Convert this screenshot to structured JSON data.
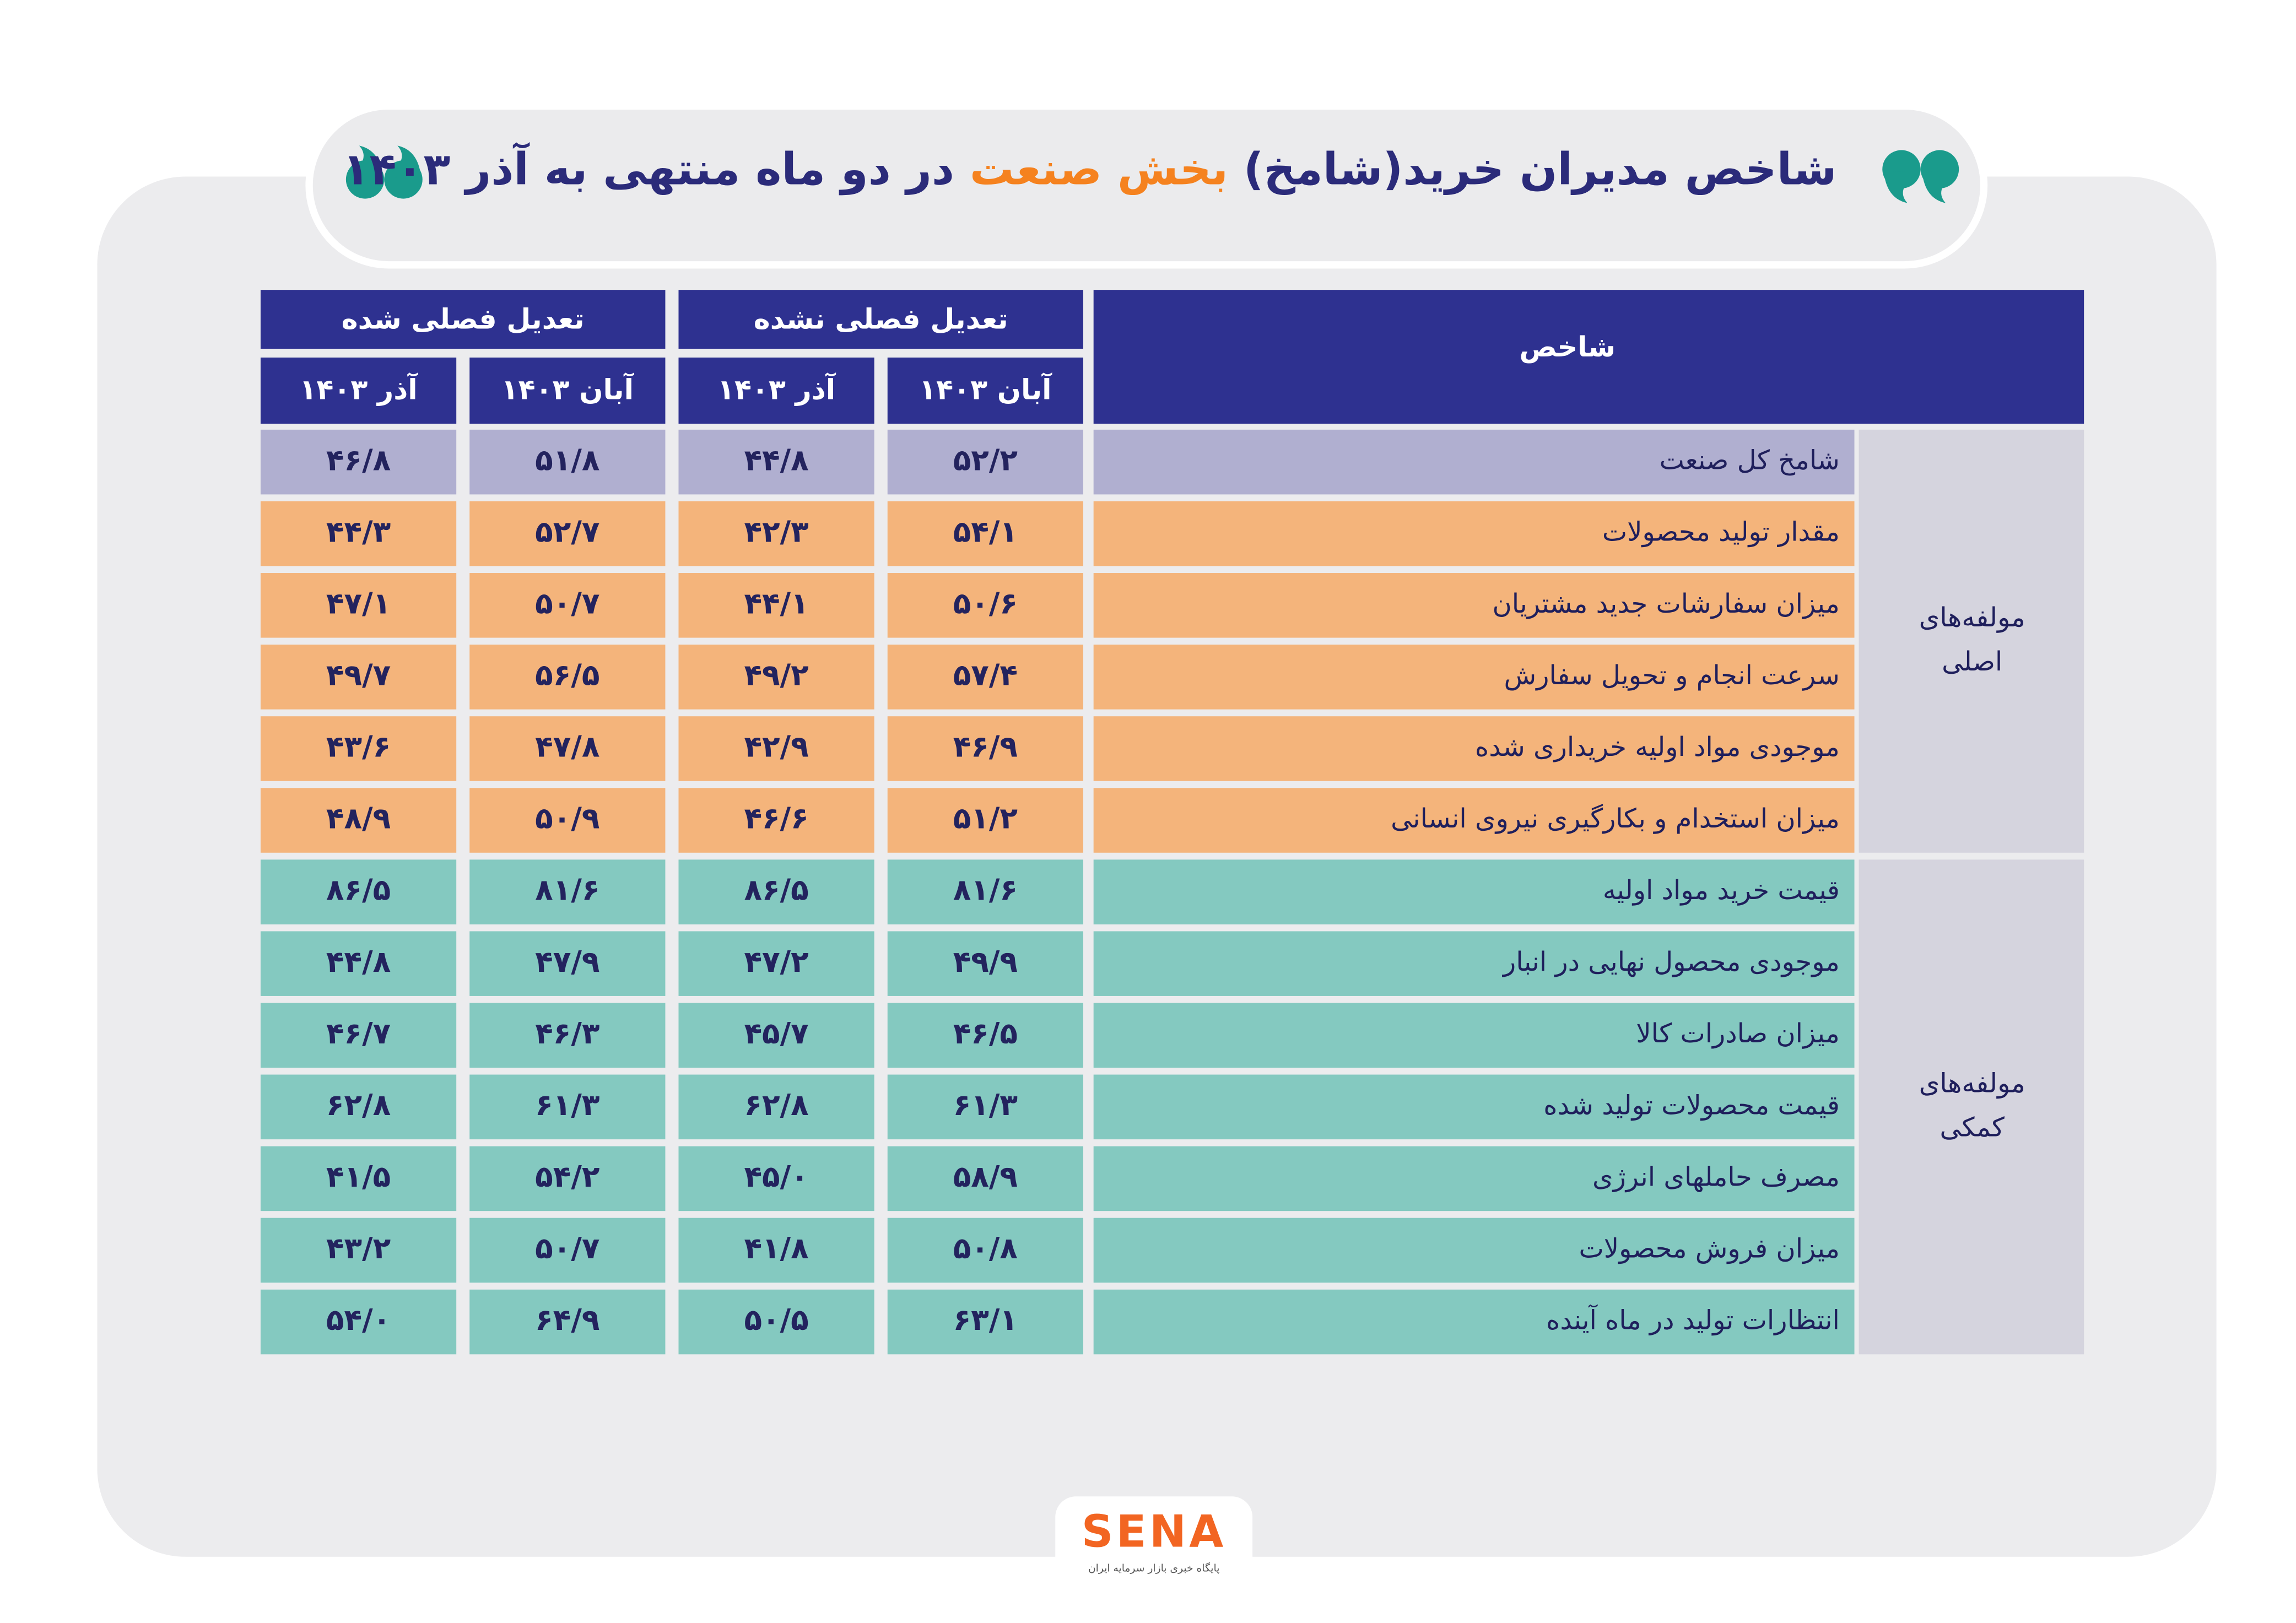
{
  "header": {
    "title_prefix": "شاخص مدیران خرید(شامخ)",
    "title_highlight": "بخش صنعت",
    "title_suffix": "در دو ماه منتهی به آذر ۱۴۰۳"
  },
  "table": {
    "index_header": "شاخص",
    "column_groups": [
      {
        "label": "تعدیل فصلی نشده",
        "columns": [
          "آبان ۱۴۰۳",
          "آذر ۱۴۰۳"
        ]
      },
      {
        "label": "تعدیل فصلی شده",
        "columns": [
          "آبان ۱۴۰۳",
          "آذر ۱۴۰۳"
        ]
      }
    ],
    "row_groups": [
      {
        "label_lines": [
          "مولفه‌های",
          "اصلی"
        ],
        "rows": [
          [
            "شامخ کل صنعت",
            "۵۲/۲",
            "۴۴/۸",
            "۵۱/۸",
            "۴۶/۸"
          ],
          [
            "مقدار تولید محصولات",
            "۵۴/۱",
            "۴۲/۳",
            "۵۲/۷",
            "۴۴/۳"
          ],
          [
            "میزان سفارشات جدید مشتریان",
            "۵۰/۶",
            "۴۴/۱",
            "۵۰/۷",
            "۴۷/۱"
          ],
          [
            "سرعت انجام و تحویل سفارش",
            "۵۷/۴",
            "۴۹/۲",
            "۵۶/۵",
            "۴۹/۷"
          ],
          [
            "موجودی مواد اولیه خریداری شده",
            "۴۶/۹",
            "۴۲/۹",
            "۴۷/۸",
            "۴۳/۶"
          ],
          [
            "میزان استخدام و بکارگیری نیروی انسانی",
            "۵۱/۲",
            "۴۶/۶",
            "۵۰/۹",
            "۴۸/۹"
          ]
        ]
      },
      {
        "label_lines": [
          "مولفه‌های",
          "کمکی"
        ],
        "rows": [
          [
            "قیمت خرید مواد اولیه",
            "۸۱/۶",
            "۸۶/۵",
            "۸۱/۶",
            "۸۶/۵"
          ],
          [
            "موجودی محصول نهایی در انبار",
            "۴۹/۹",
            "۴۷/۲",
            "۴۷/۹",
            "۴۴/۸"
          ],
          [
            "میزان صادرات کالا",
            "۴۶/۵",
            "۴۵/۷",
            "۴۶/۳",
            "۴۶/۷"
          ],
          [
            "قیمت محصولات تولید شده",
            "۶۱/۳",
            "۶۲/۸",
            "۶۱/۳",
            "۶۲/۸"
          ],
          [
            "مصرف حاملهای انرژی",
            "۵۸/۹",
            "۴۵/۰",
            "۵۴/۲",
            "۴۱/۵"
          ],
          [
            "میزان فروش محصولات",
            "۵۰/۸",
            "۴۱/۸",
            "۵۰/۷",
            "۴۳/۲"
          ],
          [
            "انتظارات تولید در ماه آینده",
            "۶۳/۱",
            "۵۰/۵",
            "۶۴/۹",
            "۵۴/۰"
          ]
        ]
      }
    ]
  },
  "footer": {
    "logo": "SENA",
    "tagline": "پایگاه خبری بازار سرمایه ایران"
  }
}
